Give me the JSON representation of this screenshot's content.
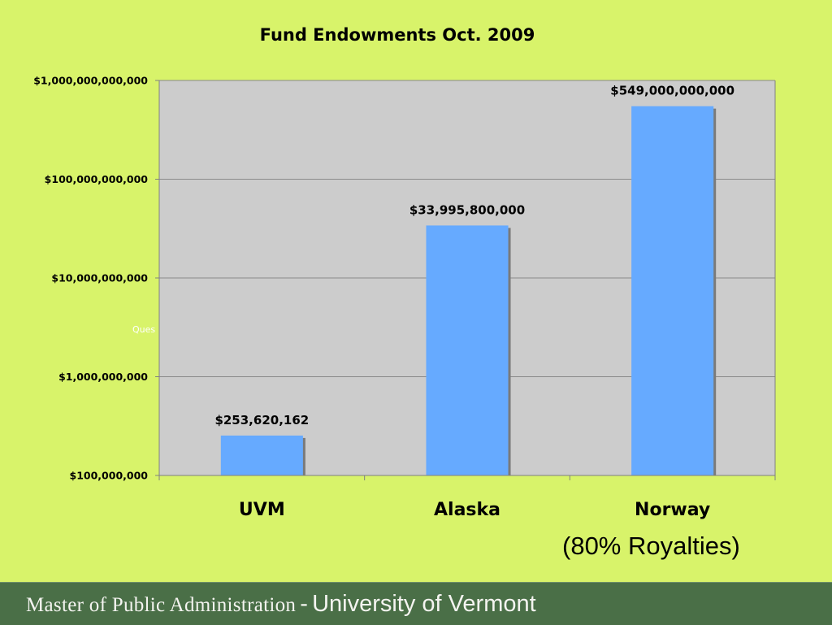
{
  "slide": {
    "annotation": "(80% Royalties)",
    "overlay_text": "Ques",
    "footer": {
      "left": "Master of Public Administration",
      "separator": "-",
      "right": "University of Vermont"
    }
  },
  "colors": {
    "background": "#d8f36a",
    "plot_area": "#cccccc",
    "bar": "#66aaff",
    "bar_shadow": "#7a7a7a",
    "gridline": "#8a8a8a",
    "footer": "#4a6f47"
  },
  "chart_data": {
    "type": "bar",
    "title": "Fund Endowments Oct. 2009",
    "xlabel": "",
    "ylabel": "",
    "yscale": "log",
    "ylim": [
      100000000,
      1000000000000
    ],
    "grid": true,
    "legend": "none",
    "categories": [
      "UVM",
      "Alaska",
      "Norway"
    ],
    "values": [
      253620162,
      33995800000,
      549000000000
    ],
    "data_labels": [
      "$253,620,162",
      "$33,995,800,000",
      "$549,000,000,000"
    ],
    "yticks": [
      100000000,
      1000000000,
      10000000000,
      100000000000,
      1000000000000
    ],
    "ytick_labels": [
      "$100,000,000",
      "$1,000,000,000",
      "$10,000,000,000",
      "$100,000,000,000",
      "$1,000,000,000,000"
    ]
  }
}
